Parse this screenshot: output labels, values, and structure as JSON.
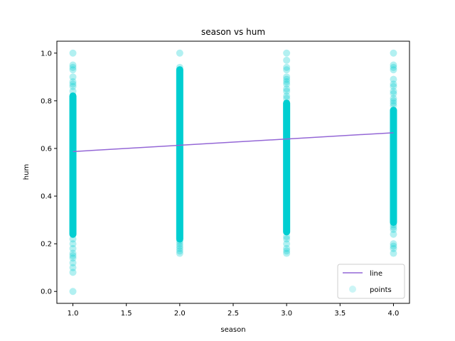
{
  "chart_data": {
    "type": "scatter",
    "title": "season vs hum",
    "xlabel": "season",
    "ylabel": "hum",
    "xlim": [
      0.85,
      4.15
    ],
    "ylim": [
      -0.05,
      1.05
    ],
    "x_ticks": [
      "1.0",
      "1.5",
      "2.0",
      "2.5",
      "3.0",
      "3.5",
      "4.0"
    ],
    "y_ticks": [
      "0.0",
      "0.2",
      "0.4",
      "0.6",
      "0.8",
      "1.0"
    ],
    "grid": false,
    "legend_position": "lower-right",
    "series": [
      {
        "name": "line",
        "kind": "line",
        "color": "#9467d6",
        "x": [
          1.0,
          4.0
        ],
        "y": [
          0.587,
          0.666
        ]
      },
      {
        "name": "points",
        "kind": "scatter",
        "color": "#00ced1",
        "groups": [
          {
            "x": 1.0,
            "dense_range": [
              0.24,
              0.82
            ],
            "values": [
              0.0,
              0.08,
              0.1,
              0.12,
              0.14,
              0.15,
              0.16,
              0.18,
              0.2,
              0.22,
              0.84,
              0.86,
              0.87,
              0.88,
              0.9,
              0.93,
              0.94,
              0.95,
              1.0
            ]
          },
          {
            "x": 2.0,
            "dense_range": [
              0.22,
              0.93
            ],
            "values": [
              0.16,
              0.17,
              0.18,
              0.19,
              0.2,
              0.21,
              0.94,
              1.0
            ]
          },
          {
            "x": 3.0,
            "dense_range": [
              0.25,
              0.79
            ],
            "values": [
              0.16,
              0.17,
              0.18,
              0.2,
              0.22,
              0.23,
              0.81,
              0.82,
              0.84,
              0.85,
              0.87,
              0.88,
              0.89,
              0.9,
              0.93,
              0.94,
              0.97,
              1.0
            ]
          },
          {
            "x": 4.0,
            "dense_range": [
              0.29,
              0.76
            ],
            "values": [
              0.16,
              0.18,
              0.19,
              0.2,
              0.24,
              0.26,
              0.27,
              0.28,
              0.78,
              0.79,
              0.8,
              0.81,
              0.83,
              0.84,
              0.86,
              0.87,
              0.89,
              0.93,
              0.94,
              0.95,
              1.0
            ]
          }
        ]
      }
    ]
  }
}
